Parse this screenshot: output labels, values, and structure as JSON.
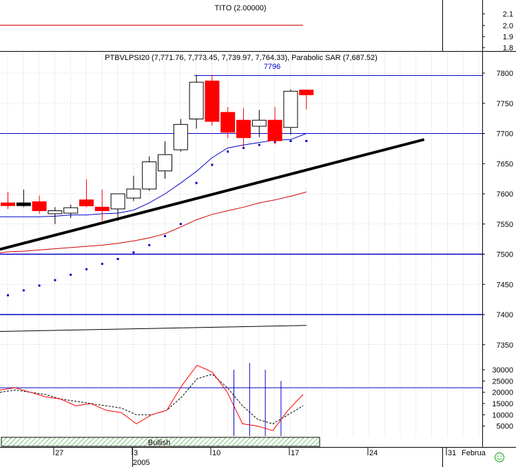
{
  "chart_data": {
    "type": "candlestick",
    "colors": {
      "up": "#ffffff",
      "down": "#ff0000",
      "neutral": "#000000",
      "sma": "#0000cc",
      "sma2": "#cc0000",
      "sar": "#0000cc",
      "trend": "#000000",
      "hline": "#0000cc",
      "osc_fast": "#ff0000",
      "osc_slow": "#000000",
      "volume": "#0000cc",
      "band": "#33aa33"
    },
    "tito_panel": {
      "title": "TITO (2.00000)",
      "ticks": [
        "2.1",
        "2.0",
        "1.9",
        "1.8"
      ],
      "value": 2.0
    },
    "price_panel": {
      "title": "PTBVLPSI20 (7,771.76, 7,773.45, 7,739.97, 7,764.33), Parabolic SAR (7,687.52)",
      "ylim": [
        7300,
        7820
      ],
      "ticks": [
        "7800",
        "7750",
        "7700",
        "7650",
        "7600",
        "7550",
        "7500",
        "7450",
        "7400",
        "7350"
      ],
      "annotation": "7796",
      "resistance": 7796,
      "hlines": [
        7700,
        7500,
        7400
      ],
      "candles": [
        {
          "o": 7585,
          "h": 7603,
          "l": 7575,
          "c": 7582
        },
        {
          "o": 7585,
          "h": 7607,
          "l": 7578,
          "c": 7585
        },
        {
          "o": 7587,
          "h": 7597,
          "l": 7567,
          "c": 7572
        },
        {
          "o": 7567,
          "h": 7578,
          "l": 7550,
          "c": 7572
        },
        {
          "o": 7568,
          "h": 7582,
          "l": 7560,
          "c": 7577
        },
        {
          "o": 7590,
          "h": 7624,
          "l": 7578,
          "c": 7580
        },
        {
          "o": 7578,
          "h": 7607,
          "l": 7555,
          "c": 7572
        },
        {
          "o": 7575,
          "h": 7598,
          "l": 7555,
          "c": 7600
        },
        {
          "o": 7593,
          "h": 7630,
          "l": 7588,
          "c": 7608
        },
        {
          "o": 7608,
          "h": 7662,
          "l": 7605,
          "c": 7653
        },
        {
          "o": 7638,
          "h": 7687,
          "l": 7625,
          "c": 7665
        },
        {
          "o": 7673,
          "h": 7724,
          "l": 7670,
          "c": 7715
        },
        {
          "o": 7724,
          "h": 7797,
          "l": 7708,
          "c": 7785
        },
        {
          "o": 7787,
          "h": 7797,
          "l": 7713,
          "c": 7720
        },
        {
          "o": 7735,
          "h": 7744,
          "l": 7692,
          "c": 7702
        },
        {
          "o": 7722,
          "h": 7742,
          "l": 7676,
          "c": 7693
        },
        {
          "o": 7712,
          "h": 7739,
          "l": 7694,
          "c": 7722
        },
        {
          "o": 7722,
          "h": 7744,
          "l": 7682,
          "c": 7688
        },
        {
          "o": 7710,
          "h": 7773,
          "l": 7698,
          "c": 7770
        },
        {
          "o": 7772,
          "h": 7773,
          "l": 7740,
          "c": 7764
        }
      ],
      "sma": [
        7562,
        7562,
        7562,
        7563,
        7565,
        7565,
        7567,
        7568,
        7573,
        7585,
        7600,
        7618,
        7637,
        7660,
        7676,
        7681,
        7685,
        7689,
        7690,
        7700
      ],
      "sma2": [
        7504,
        7505,
        7507,
        7509,
        7511,
        7513,
        7515,
        7518,
        7522,
        7527,
        7534,
        7545,
        7557,
        7566,
        7572,
        7578,
        7585,
        7590,
        7596,
        7603
      ],
      "sar": [
        7432,
        7440,
        7448,
        7457,
        7466,
        7475,
        7484,
        7492,
        7503,
        7515,
        7530,
        7550,
        7618,
        7648,
        7670,
        7676,
        7681,
        7686,
        7687.52,
        7687.52
      ],
      "trend": {
        "x0": 0,
        "y0": 7508,
        "x1": 26.5,
        "y1": 7690
      },
      "low_line": {
        "x0": 0,
        "y0": 7372,
        "x1": 19,
        "y1": 7382
      }
    },
    "osc_panel": {
      "ylim": [
        0,
        35000
      ],
      "ticks": [
        "30000",
        "25000",
        "20000",
        "15000",
        "10000",
        "5000"
      ],
      "hline": 22000,
      "fast": [
        21000,
        22000,
        20000,
        18000,
        17000,
        14000,
        15000,
        12000,
        11000,
        6000,
        10000,
        12000,
        23000,
        32000,
        29000,
        20000,
        6000,
        5000,
        3000,
        12000,
        19000
      ],
      "slow": [
        20000,
        21000,
        20000,
        19000,
        17000,
        16000,
        15000,
        14000,
        13000,
        10000,
        10000,
        12000,
        18000,
        26000,
        28000,
        22000,
        14000,
        8000,
        6000,
        10000,
        14000
      ],
      "bars": [
        {
          "i": 15,
          "v": 30000
        },
        {
          "i": 16,
          "v": 33000
        },
        {
          "i": 17,
          "v": 30000
        },
        {
          "i": 18,
          "v": 25000
        }
      ]
    },
    "band": {
      "label": "Bullish",
      "from": 0,
      "to": 20.3
    },
    "xaxis": {
      "days": [
        "27",
        "3",
        "10",
        "17",
        "24",
        "31",
        "Februa"
      ],
      "year": "2005"
    }
  }
}
